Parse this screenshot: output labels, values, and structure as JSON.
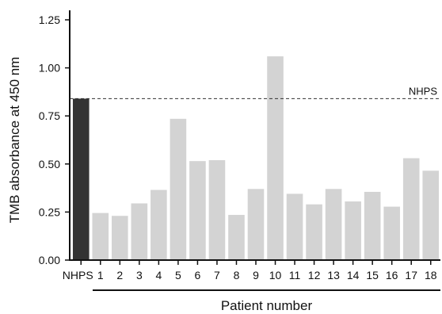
{
  "chart_data": {
    "type": "bar",
    "categories": [
      "NHPS",
      "1",
      "2",
      "3",
      "4",
      "5",
      "6",
      "7",
      "8",
      "9",
      "10",
      "11",
      "12",
      "13",
      "14",
      "15",
      "16",
      "17",
      "18"
    ],
    "values": [
      0.84,
      0.245,
      0.23,
      0.295,
      0.365,
      0.735,
      0.515,
      0.52,
      0.235,
      0.37,
      1.06,
      0.345,
      0.29,
      0.37,
      0.305,
      0.355,
      0.278,
      0.53,
      0.465
    ],
    "ylabel": "TMB absorbance at 450 nm",
    "xlabel": "Patient number",
    "ylim": [
      0,
      1.25
    ],
    "yticks": [
      "0.00",
      "0.25",
      "0.50",
      "0.75",
      "1.00",
      "1.25"
    ],
    "reference_line": {
      "label": "NHPS",
      "value": 0.84
    },
    "colors": {
      "control": "#333333",
      "patient": "#d3d3d3",
      "axis": "#111111"
    },
    "grid": false
  }
}
